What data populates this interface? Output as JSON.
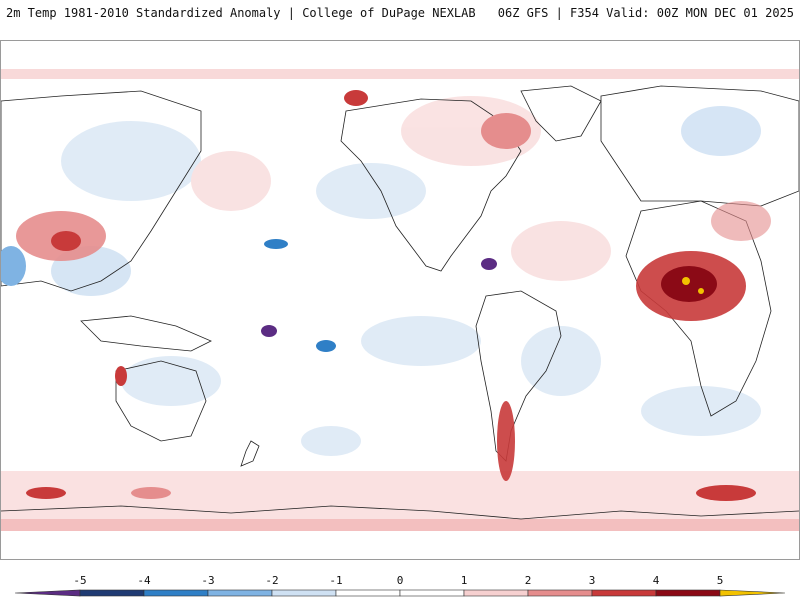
{
  "header": {
    "title": "2m Temp 1981-2010 Standardized Anomaly | College of DuPage NEXLAB",
    "run_info": "06Z GFS | F354 Valid: 00Z MON DEC 01 2025"
  },
  "colorbar": {
    "ticks": [
      "-5",
      "-4",
      "-3",
      "-2",
      "-1",
      "0",
      "1",
      "2",
      "3",
      "4",
      "5"
    ],
    "colors": [
      "#5b2c83",
      "#1f3b73",
      "#2f7fc6",
      "#7fb3e3",
      "#cfe1f3",
      "#ffffff",
      "#ffffff",
      "#f6d0d0",
      "#e58d8d",
      "#c83a3a",
      "#8b0a16",
      "#f2c200"
    ]
  },
  "map": {
    "projection": "global cylindrical (Pacific-centered)",
    "field": "2m temperature standardized anomaly"
  }
}
